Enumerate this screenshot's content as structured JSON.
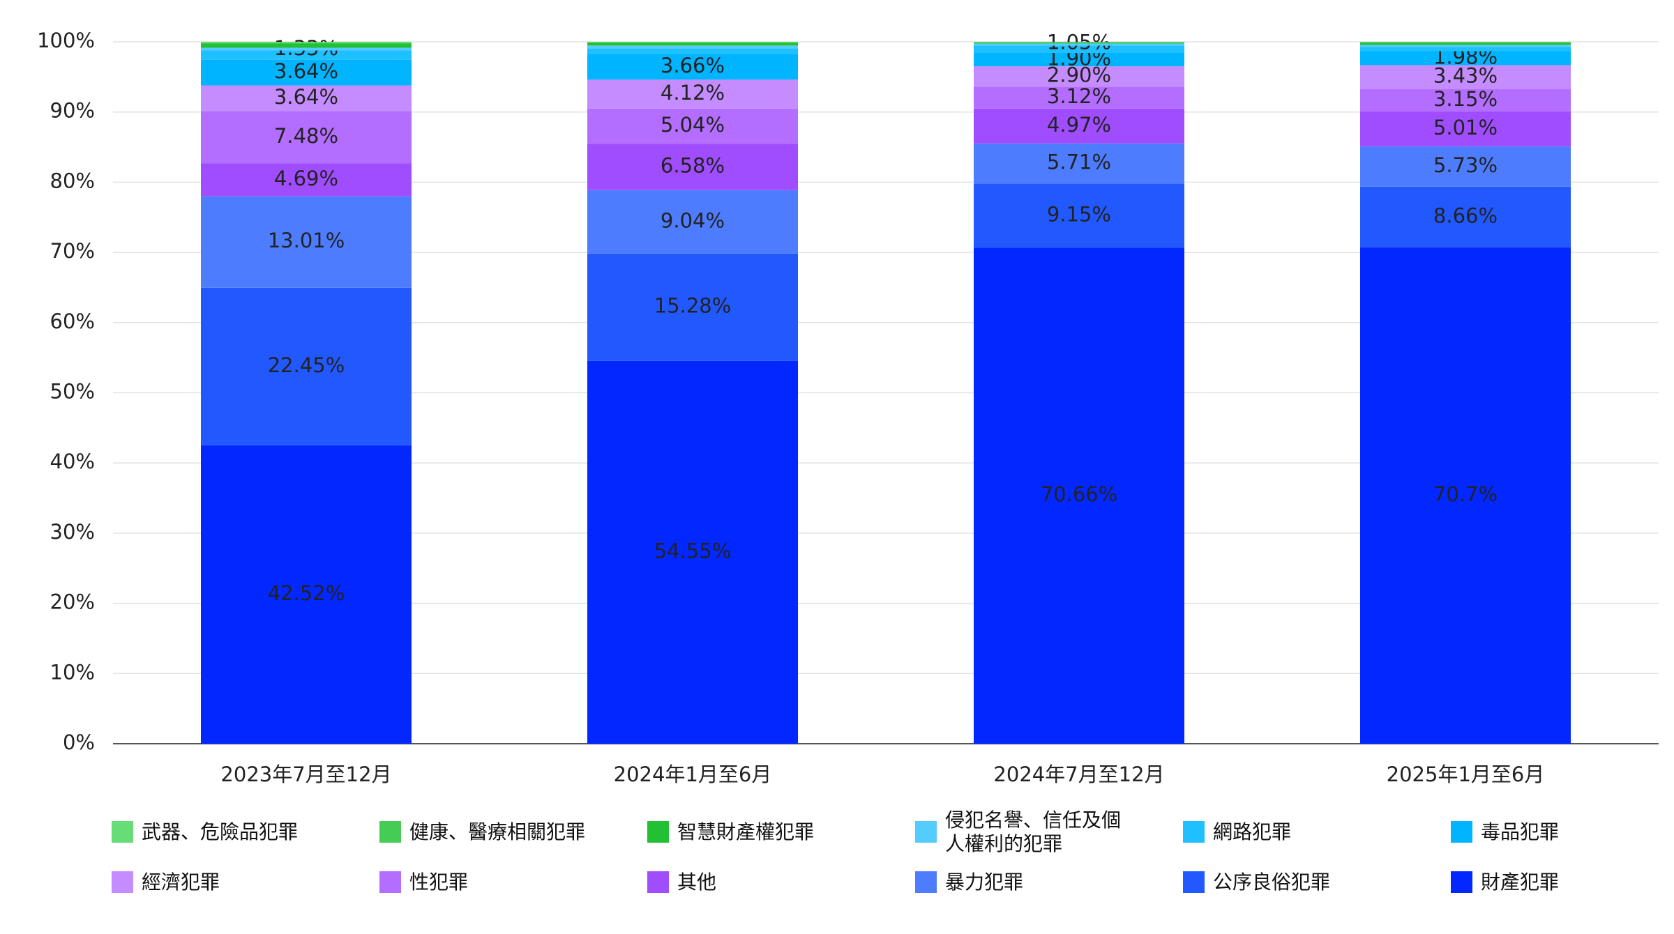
{
  "chart_data": {
    "type": "stacked_bar",
    "categories": [
      "2023年7月至12月",
      "2024年1月至6月",
      "2024年7月至12月",
      "2025年1月至6月"
    ],
    "ylim": [
      0,
      100
    ],
    "yticks": [
      {
        "value": 0,
        "label": "0%"
      },
      {
        "value": 10,
        "label": "10%"
      },
      {
        "value": 20,
        "label": "20%"
      },
      {
        "value": 30,
        "label": "30%"
      },
      {
        "value": 40,
        "label": "40%"
      },
      {
        "value": 50,
        "label": "50%"
      },
      {
        "value": 60,
        "label": "60%"
      },
      {
        "value": 70,
        "label": "70%"
      },
      {
        "value": 80,
        "label": "80%"
      },
      {
        "value": 90,
        "label": "90%"
      },
      {
        "value": 100,
        "label": "100%"
      }
    ],
    "grid": true,
    "series": [
      {
        "name": "財產犯罪",
        "color": "#0328ff",
        "values": [
          42.52,
          54.55,
          70.66,
          70.7
        ],
        "value_labels": [
          "42.52%",
          "54.55%",
          "70.66%",
          "70.7%"
        ]
      },
      {
        "name": "公序良俗犯罪",
        "color": "#2259ff",
        "values": [
          22.45,
          15.28,
          9.15,
          8.66
        ],
        "value_labels": [
          "22.45%",
          "15.28%",
          "9.15%",
          "8.66%"
        ]
      },
      {
        "name": "暴力犯罪",
        "color": "#4d7cff",
        "values": [
          13.01,
          9.04,
          5.71,
          5.73
        ],
        "value_labels": [
          "13.01%",
          "9.04%",
          "5.71%",
          "5.73%"
        ]
      },
      {
        "name": "其他",
        "color": "#a04dff",
        "values": [
          4.69,
          6.58,
          4.97,
          5.01
        ],
        "value_labels": [
          "4.69%",
          "6.58%",
          "4.97%",
          "5.01%"
        ]
      },
      {
        "name": "性犯罪",
        "color": "#b46eff",
        "values": [
          7.48,
          5.04,
          3.12,
          3.15
        ],
        "value_labels": [
          "7.48%",
          "5.04%",
          "3.12%",
          "3.15%"
        ]
      },
      {
        "name": "經濟犯罪",
        "color": "#c48cff",
        "values": [
          3.64,
          4.12,
          2.9,
          3.43
        ],
        "value_labels": [
          "3.64%",
          "4.12%",
          "2.90%",
          "3.43%"
        ]
      },
      {
        "name": "毒品犯罪",
        "color": "#00b4ff",
        "values": [
          3.64,
          3.66,
          1.9,
          1.98
        ],
        "value_labels": [
          "3.64%",
          "3.66%",
          "1.90%",
          "1.98%"
        ]
      },
      {
        "name": "網路犯罪",
        "color": "#1ec0ff",
        "values": [
          1.33,
          0.8,
          1.05,
          0.6
        ],
        "value_labels": [
          "1.33%",
          null,
          "1.05%",
          null
        ]
      },
      {
        "name": "侵犯名譽、信任及個人權利的犯罪",
        "color": "#55ccff",
        "values": [
          0.4,
          0.4,
          0.3,
          0.3
        ]
      },
      {
        "name": "智慧財產權犯罪",
        "color": "#22c033",
        "values": [
          0.6,
          0.4,
          0.1,
          0.3
        ]
      },
      {
        "name": "健康、醫療相關犯罪",
        "color": "#44cc55",
        "values": [
          0.1,
          0.1,
          0.1,
          0.1
        ]
      },
      {
        "name": "武器、危險品犯罪",
        "color": "#66dd77",
        "values": [
          0.14,
          0.03,
          0.04,
          0.04
        ]
      }
    ]
  }
}
